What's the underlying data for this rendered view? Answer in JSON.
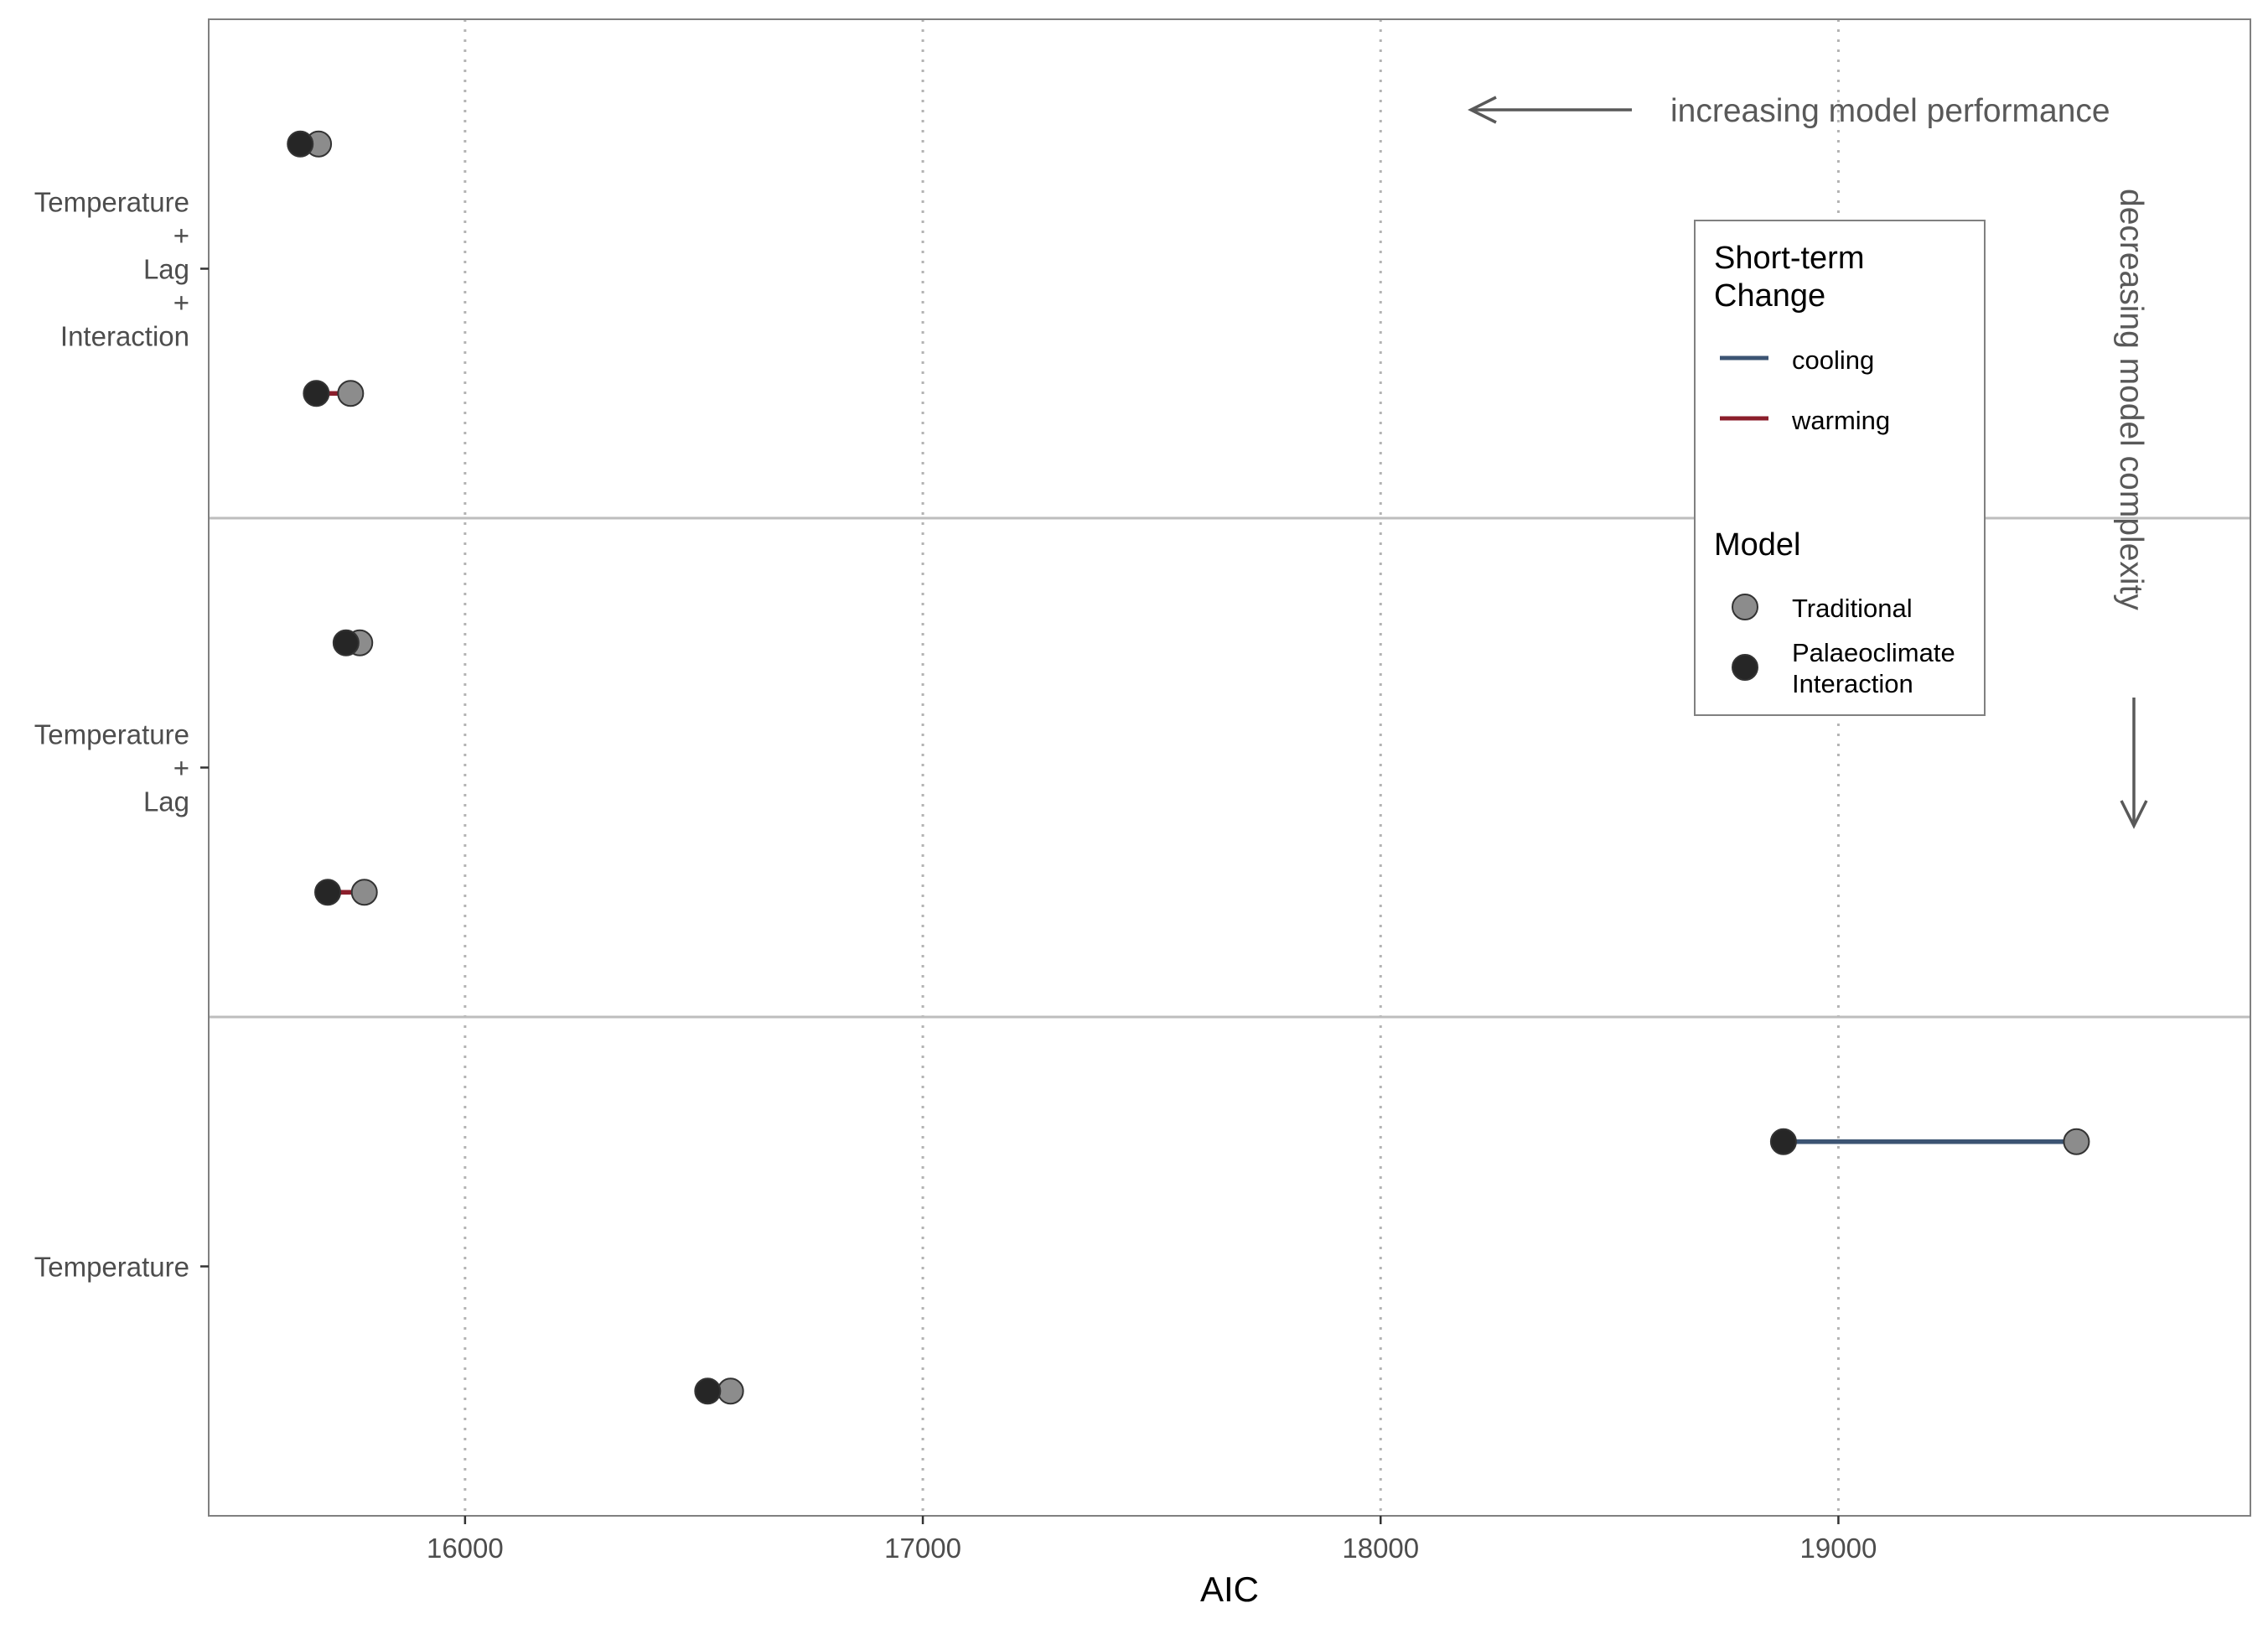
{
  "chart_data": {
    "type": "dumbbell",
    "xlabel": "AIC",
    "ylabel": "",
    "xlim": [
      15440,
      19900
    ],
    "x_ticks": [
      16000,
      17000,
      18000,
      19000
    ],
    "x_tick_labels": [
      "16000",
      "17000",
      "18000",
      "19000"
    ],
    "grid": "vertical dotted at major x ticks",
    "facets": [
      {
        "label_lines": [
          "Temperature",
          "+",
          "Lag",
          "+",
          "Interaction"
        ],
        "rows": [
          {
            "change": "cooling",
            "traditional": 15680,
            "palaeoclimate_interaction": 15640
          },
          {
            "change": "warming",
            "traditional": 15750,
            "palaeoclimate_interaction": 15675
          }
        ]
      },
      {
        "label_lines": [
          "Temperature",
          "+",
          "Lag"
        ],
        "rows": [
          {
            "change": "cooling",
            "traditional": 15770,
            "palaeoclimate_interaction": 15740
          },
          {
            "change": "warming",
            "traditional": 15780,
            "palaeoclimate_interaction": 15700
          }
        ]
      },
      {
        "label_lines": [
          "Temperature"
        ],
        "rows": [
          {
            "change": "cooling",
            "traditional": 19520,
            "palaeoclimate_interaction": 18880
          },
          {
            "change": "warming",
            "traditional": 16580,
            "palaeoclimate_interaction": 16530
          }
        ]
      }
    ],
    "legend": {
      "placement": "top-right, inside",
      "line_title_lines": [
        "Short-term",
        "Change"
      ],
      "line_entries": [
        {
          "label": "cooling",
          "color": "#3c5473"
        },
        {
          "label": "warming",
          "color": "#8b1e2b"
        }
      ],
      "point_title": "Model",
      "point_entries": [
        {
          "label_lines": [
            "Traditional"
          ],
          "color": "#8c8c8c"
        },
        {
          "label_lines": [
            "Palaeoclimate",
            "Interaction"
          ],
          "color": "#262626"
        }
      ]
    },
    "annotations": {
      "performance": "increasing model performance",
      "complexity": "decreasing model complexity"
    }
  }
}
